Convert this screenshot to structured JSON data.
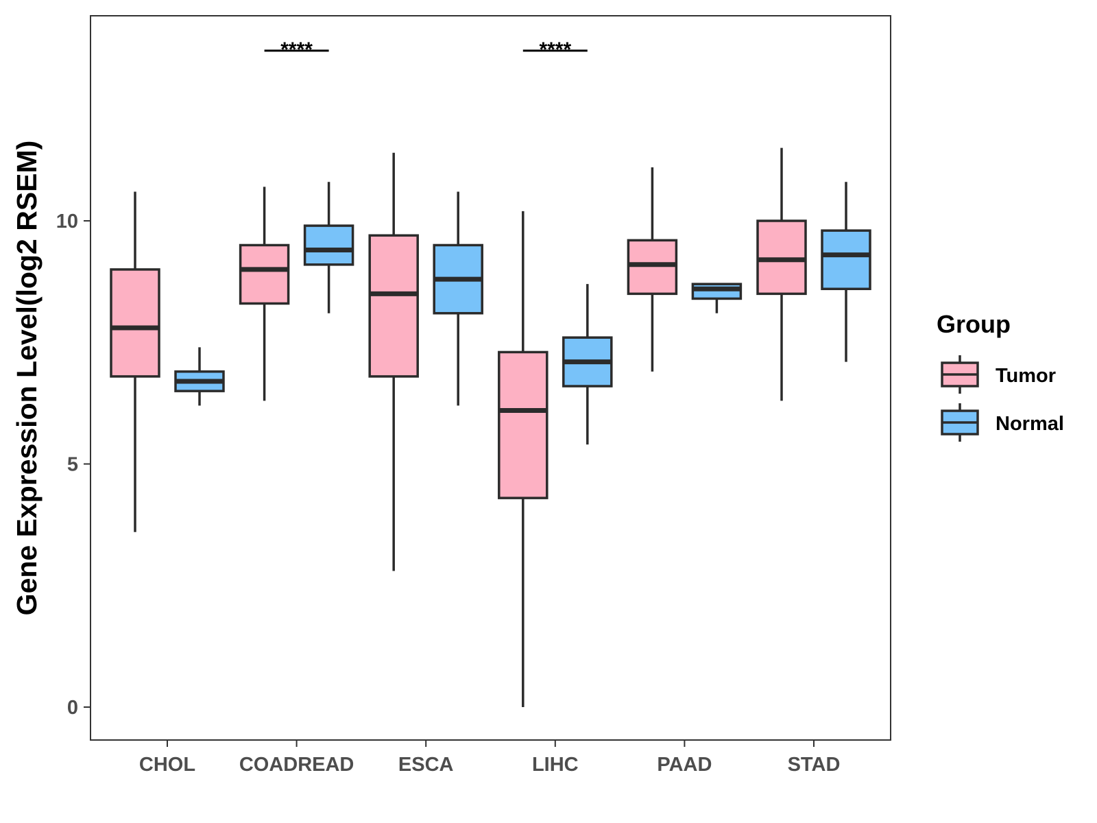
{
  "chart_data": {
    "type": "boxplot",
    "title": "",
    "xlabel": "",
    "ylabel": "Gene Expression Level(log2 RSEM)",
    "ylim": [
      -0.65,
      14.25
    ],
    "yticks": [
      0,
      5,
      10
    ],
    "grid": false,
    "categories": [
      "CHOL",
      "COADREAD",
      "ESCA",
      "LIHC",
      "PAAD",
      "STAD"
    ],
    "legend": {
      "title": "Group",
      "position": "right",
      "entries": [
        "Tumor",
        "Normal"
      ]
    },
    "colors": {
      "Tumor": "#FDB1C3",
      "Normal": "#78C2F9",
      "stroke": "#2b2b2b"
    },
    "series": [
      {
        "name": "Tumor",
        "boxes": [
          {
            "category": "CHOL",
            "whisker_low": 3.6,
            "q1": 6.8,
            "median": 7.8,
            "q3": 9.0,
            "whisker_high": 10.6
          },
          {
            "category": "COADREAD",
            "whisker_low": 6.3,
            "q1": 8.3,
            "median": 9.0,
            "q3": 9.5,
            "whisker_high": 10.7
          },
          {
            "category": "ESCA",
            "whisker_low": 2.8,
            "q1": 6.8,
            "median": 8.5,
            "q3": 9.7,
            "whisker_high": 11.4
          },
          {
            "category": "LIHC",
            "whisker_low": 0.0,
            "q1": 4.3,
            "median": 6.1,
            "q3": 7.3,
            "whisker_high": 10.2
          },
          {
            "category": "PAAD",
            "whisker_low": 6.9,
            "q1": 8.5,
            "median": 9.1,
            "q3": 9.6,
            "whisker_high": 11.1
          },
          {
            "category": "STAD",
            "whisker_low": 6.3,
            "q1": 8.5,
            "median": 9.2,
            "q3": 10.0,
            "whisker_high": 11.5
          }
        ]
      },
      {
        "name": "Normal",
        "boxes": [
          {
            "category": "CHOL",
            "whisker_low": 6.2,
            "q1": 6.5,
            "median": 6.7,
            "q3": 6.9,
            "whisker_high": 7.4
          },
          {
            "category": "COADREAD",
            "whisker_low": 8.1,
            "q1": 9.1,
            "median": 9.4,
            "q3": 9.9,
            "whisker_high": 10.8
          },
          {
            "category": "ESCA",
            "whisker_low": 6.2,
            "q1": 8.1,
            "median": 8.8,
            "q3": 9.5,
            "whisker_high": 10.6
          },
          {
            "category": "LIHC",
            "whisker_low": 5.4,
            "q1": 6.6,
            "median": 7.1,
            "q3": 7.6,
            "whisker_high": 8.7
          },
          {
            "category": "PAAD",
            "whisker_low": 8.1,
            "q1": 8.4,
            "median": 8.6,
            "q3": 8.7,
            "whisker_high": 8.7
          },
          {
            "category": "STAD",
            "whisker_low": 7.1,
            "q1": 8.6,
            "median": 9.3,
            "q3": 9.8,
            "whisker_high": 10.8
          }
        ]
      }
    ],
    "annotations": [
      {
        "category": "COADREAD",
        "label": "****",
        "y": 13.5
      },
      {
        "category": "LIHC",
        "label": "****",
        "y": 13.5
      }
    ]
  }
}
